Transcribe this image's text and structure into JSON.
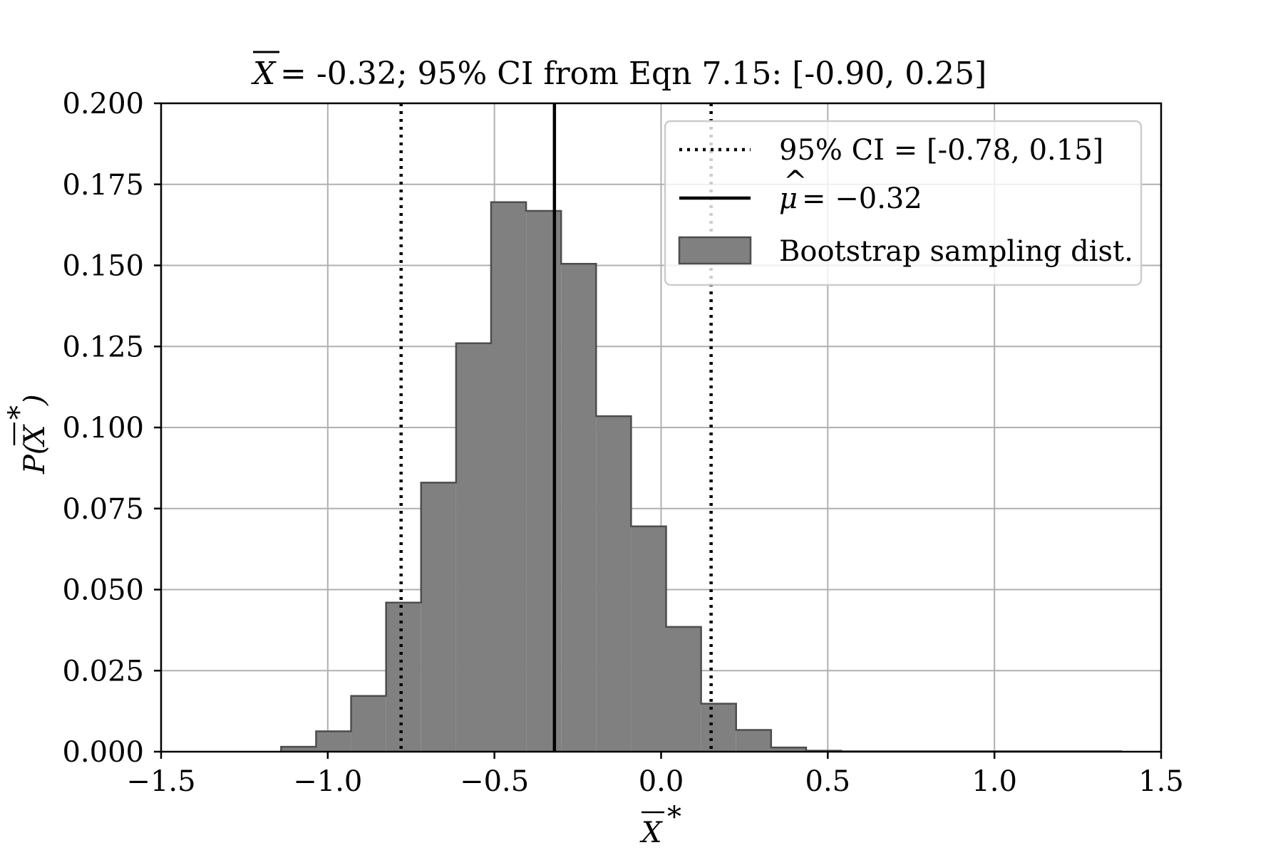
{
  "chart_data": {
    "type": "bar",
    "title_symbol": "X",
    "title": " = -0.32; 95% CI from Eqn 7.15: [-0.90, 0.25]",
    "xlabel_symbol": "X",
    "xlabel_sup": "*",
    "ylabel_prefix": "P(",
    "ylabel_symbol": "X",
    "ylabel_sup": "*",
    "ylabel_suffix": ")",
    "xlim": [
      -1.5,
      1.5
    ],
    "ylim": [
      0,
      0.2
    ],
    "xticks": [
      -1.5,
      -1.0,
      -0.5,
      0.0,
      0.5,
      1.0,
      1.5
    ],
    "xtick_labels": [
      "−1.5",
      "−1.0",
      "−0.5",
      "0.0",
      "0.5",
      "1.0",
      "1.5"
    ],
    "yticks": [
      0,
      0.025,
      0.05,
      0.075,
      0.1,
      0.125,
      0.15,
      0.175,
      0.2
    ],
    "ytick_labels": [
      "0.000",
      "0.025",
      "0.050",
      "0.075",
      "0.100",
      "0.125",
      "0.150",
      "0.175",
      "0.200"
    ],
    "grid": true,
    "legend_position": "top-right",
    "bin_edges": [
      -1.14,
      -1.035,
      -0.93,
      -0.825,
      -0.72,
      -0.615,
      -0.51,
      -0.405,
      -0.3,
      -0.195,
      -0.09,
      0.015,
      0.12,
      0.225,
      0.33,
      0.435,
      0.54,
      0.645,
      0.75,
      0.855,
      0.96,
      1.065,
      1.17,
      1.275,
      1.38
    ],
    "values": [
      0.0015,
      0.0063,
      0.0172,
      0.046,
      0.083,
      0.126,
      0.1695,
      0.1668,
      0.1505,
      0.1035,
      0.0695,
      0.0385,
      0.0148,
      0.0067,
      0.0013,
      0.0003,
      0.0001,
      0.0001,
      0.0001,
      0.0001,
      0.0001,
      0.0001,
      0.0001,
      0.0001
    ],
    "ci_lower": -0.78,
    "ci_upper": 0.15,
    "mu_hat": -0.32,
    "colors": {
      "hist_fill": "#808080",
      "hist_edge": "#4d4d4d",
      "lines": "#000000",
      "grid": "#b0b0b0"
    },
    "series": [
      {
        "name": "95% CI = [-0.78, 0.15]",
        "style": "dotted"
      },
      {
        "name": "= −0.32",
        "style": "solid",
        "symbol": "μ"
      },
      {
        "name": "Bootstrap sampling dist.",
        "style": "patch"
      }
    ]
  }
}
